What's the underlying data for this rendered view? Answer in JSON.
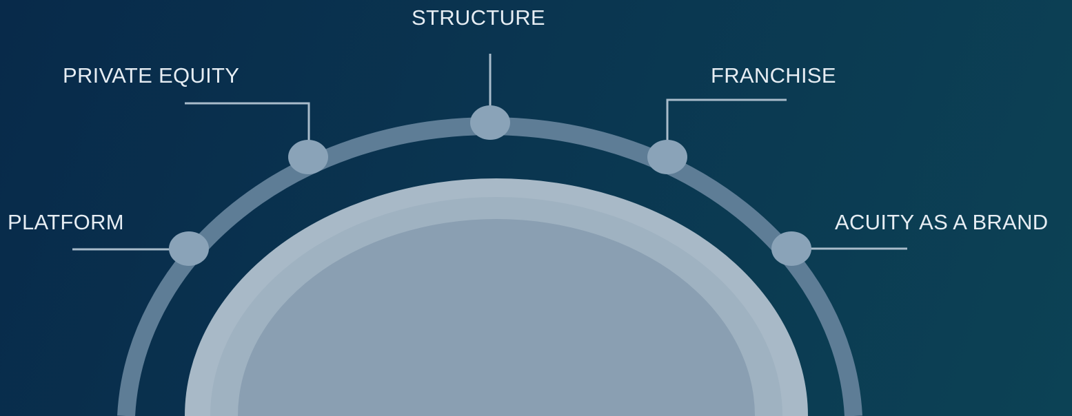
{
  "diagram": {
    "top_label": "STRUCTURE",
    "nodes": [
      {
        "id": "platform",
        "label": "PLATFORM"
      },
      {
        "id": "private-equity",
        "label": "PRIVATE EQUITY"
      },
      {
        "id": "structure",
        "label": "STRUCTURE"
      },
      {
        "id": "franchise",
        "label": "FRANCHISE"
      },
      {
        "id": "acuity-as-a-brand",
        "label": "ACUITY AS A BRAND"
      }
    ]
  },
  "colors": {
    "background_start": "#082a4a",
    "background_end": "#0c4255",
    "outer_ring": "#5e7d96",
    "node_dot": "#8aa3b8",
    "connector": "#a9bccb",
    "dome_outer": "#a8b9c7",
    "dome_inner": "#8a9fb2",
    "label_text": "#e6edf3"
  }
}
